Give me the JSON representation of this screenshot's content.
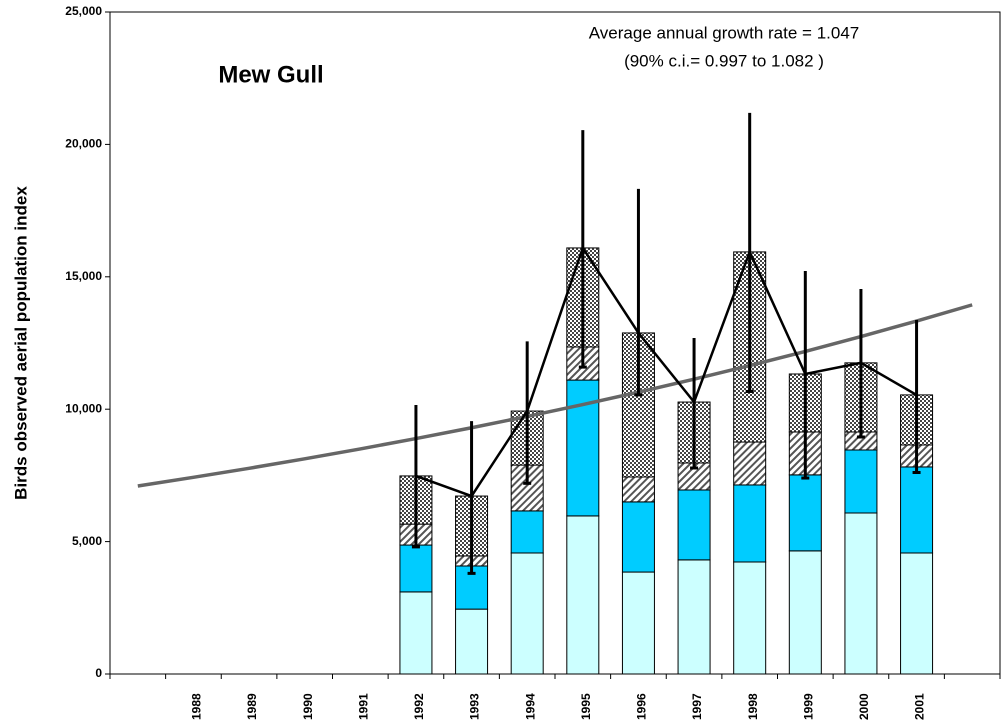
{
  "chart_data": {
    "type": "stacked-bar-line",
    "title": "Mew Gull",
    "annotations": [
      "Average annual growth rate = 1.047",
      "(90% c.i.= 0.997 to 1.082 )"
    ],
    "y_label": "Birds observed aerial population index",
    "categories": [
      null,
      "1988",
      "1989",
      "1990",
      "1991",
      "1992",
      "1993",
      "1994",
      "1995",
      "1996",
      "1997",
      "1998",
      "1999",
      "2000",
      "2001",
      null
    ],
    "series": [
      {
        "color": "#ccffff",
        "values": [
          null,
          null,
          null,
          null,
          null,
          3100,
          2450,
          4570,
          5970,
          3850,
          4310,
          4230,
          4650,
          6080,
          4570,
          null
        ]
      },
      {
        "color": "#00ccff",
        "values": [
          null,
          null,
          null,
          null,
          null,
          1770,
          1630,
          1590,
          5130,
          2650,
          2640,
          2910,
          2870,
          2380,
          3250,
          null
        ]
      },
      {
        "color": "#999999",
        "pattern": "diagonal",
        "values": [
          null,
          null,
          null,
          null,
          null,
          790,
          380,
          1730,
          1250,
          940,
          1020,
          1620,
          1620,
          680,
          830,
          null
        ]
      },
      {
        "color": "#666666",
        "pattern": "checker",
        "values": [
          null,
          null,
          null,
          null,
          null,
          1820,
          2260,
          2040,
          3740,
          5440,
          2300,
          7180,
          2190,
          2610,
          1890,
          null
        ]
      }
    ],
    "line": {
      "color": "#000000",
      "values": [
        null,
        null,
        null,
        null,
        null,
        7480,
        6720,
        9930,
        16090,
        12880,
        10270,
        15940,
        11330,
        11750,
        10540,
        null
      ]
    },
    "error_bars": {
      "low": [
        null,
        null,
        null,
        null,
        null,
        4800,
        3800,
        7200,
        11590,
        10540,
        7780,
        10670,
        7400,
        8950,
        7610,
        null
      ],
      "high": [
        null,
        null,
        null,
        null,
        null,
        10160,
        9550,
        12560,
        20540,
        18320,
        12690,
        21190,
        15220,
        14540,
        13370,
        null
      ]
    },
    "trend": {
      "color": "#666666",
      "values": [
        7100,
        7427,
        7768,
        8126,
        8500,
        8891,
        9300,
        9728,
        10176,
        10644,
        11134,
        11647,
        12183,
        12744,
        13330,
        13940
      ]
    },
    "ylim": [
      0,
      25000
    ],
    "yticks": [
      0,
      {
        "value": 5000,
        "label": "5,000"
      },
      {
        "value": 10000,
        "label": "10,000"
      },
      {
        "value": 15000,
        "label": "15,000"
      },
      {
        "value": 20000,
        "label": "20,000"
      },
      {
        "value": 25000,
        "label": "25,000"
      }
    ]
  }
}
